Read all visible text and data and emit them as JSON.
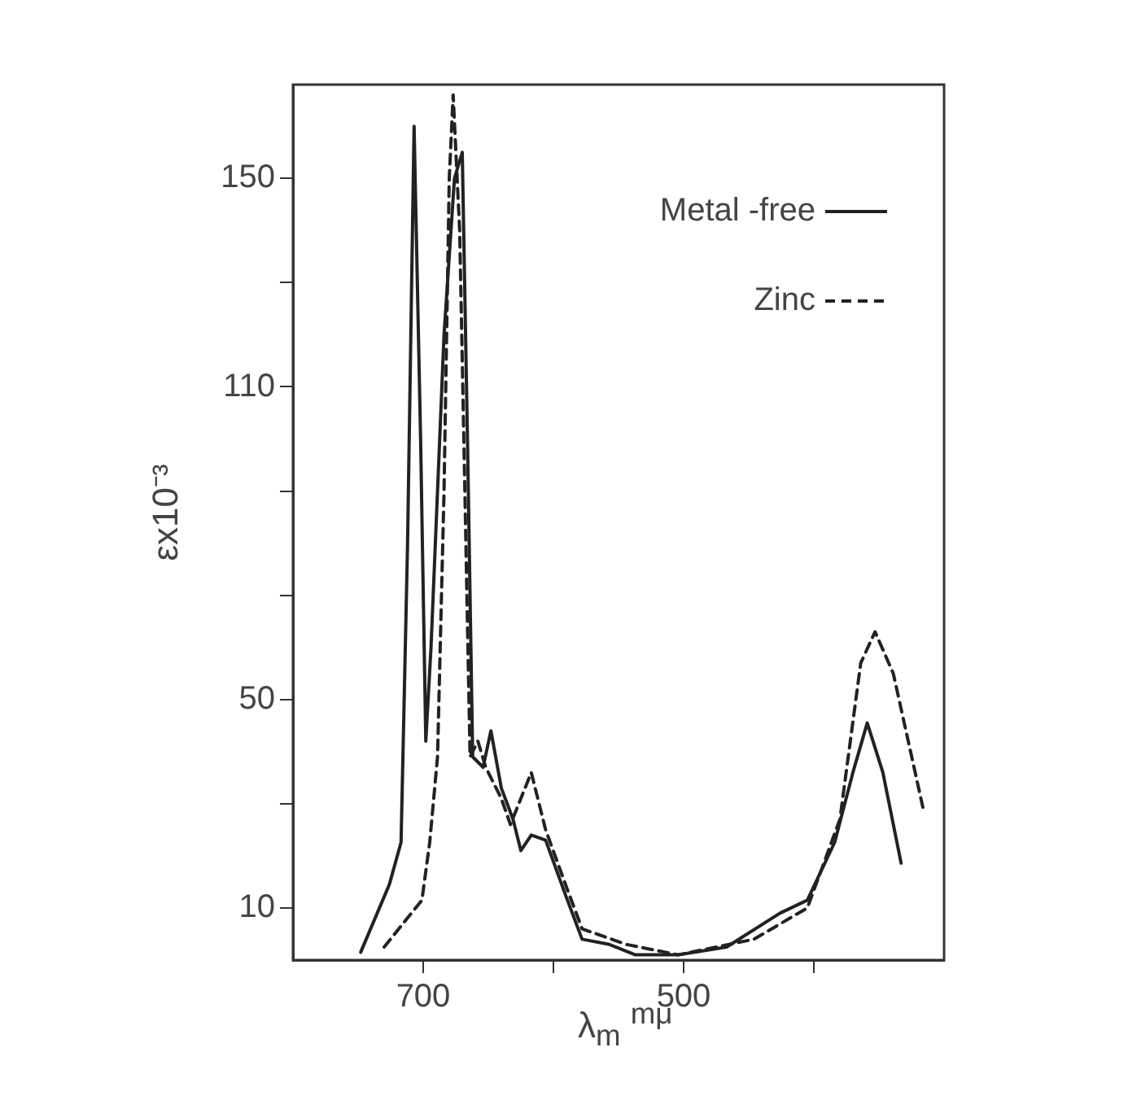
{
  "chart_data": {
    "type": "line",
    "xlabel": "λ$_{m}$ $^{mμ}$",
    "ylabel": "εx10⁻³",
    "xlim": [
      800,
      300
    ],
    "xticks": [
      700,
      {
        "value": 600,
        "label": null
      },
      500,
      {
        "value": 400,
        "label": null
      }
    ],
    "ylim": [
      0,
      168
    ],
    "yticks": [
      10,
      {
        "value": 30,
        "label": null
      },
      50,
      {
        "value": 70,
        "label": null
      },
      {
        "value": 90,
        "label": null
      },
      110,
      {
        "value": 130,
        "label": null
      },
      150
    ],
    "grid": false,
    "legend": "top right",
    "marker": "none",
    "series": [
      {
        "name": "Metal -free",
        "color": "#222222",
        "line_style": "solid",
        "x": [
          748,
          726,
          717,
          712,
          707,
          702,
          698,
          694,
          684,
          676,
          670,
          666,
          662,
          654,
          648,
          640,
          631,
          625,
          617,
          606,
          590,
          578,
          557,
          537,
          504,
          467,
          426,
          405,
          384,
          370,
          359,
          347,
          333
        ],
        "values": [
          1.5,
          14.5,
          22.6,
          80,
          160,
          100,
          42,
          60,
          120,
          150,
          155,
          100,
          39,
          37,
          44,
          33,
          27,
          21,
          24,
          23,
          12,
          4,
          3,
          1,
          1,
          2.5,
          9,
          11.5,
          22.6,
          36,
          45.5,
          36,
          18.6
        ]
      },
      {
        "name": "Zinc",
        "color": "#222222",
        "line_style": "dashed",
        "x": [
          730,
          701,
          695,
          689,
          684,
          680,
          677,
          672,
          668,
          664,
          658,
          652,
          640,
          633,
          617,
          606,
          590,
          578,
          544,
          504,
          446,
          405,
          380,
          364,
          353,
          339,
          316
        ],
        "values": [
          2.5,
          11.5,
          22.6,
          39,
          90,
          150,
          166,
          140,
          90,
          39,
          42,
          37,
          31,
          26,
          36,
          25,
          14,
          6,
          3,
          1,
          4,
          10,
          27,
          57,
          63,
          55,
          29
        ]
      }
    ]
  }
}
